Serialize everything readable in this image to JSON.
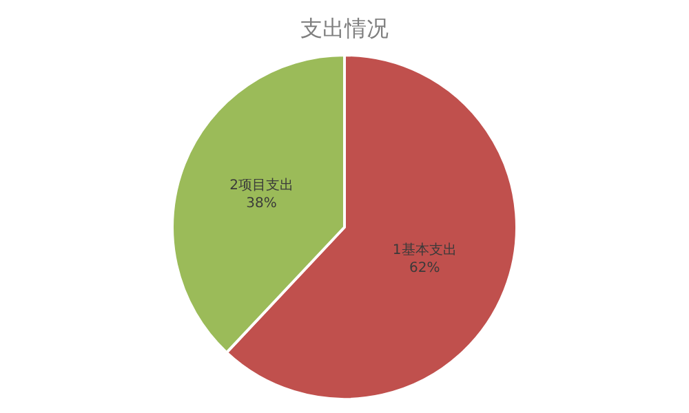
{
  "chart_data": {
    "type": "pie",
    "title": "支出情况",
    "categories": [
      "1基本支出",
      "2项目支出"
    ],
    "values": [
      62,
      38
    ],
    "value_labels": [
      "62%",
      "38%"
    ],
    "colors": [
      "#c0504d",
      "#9bbb59"
    ],
    "legend": false
  }
}
